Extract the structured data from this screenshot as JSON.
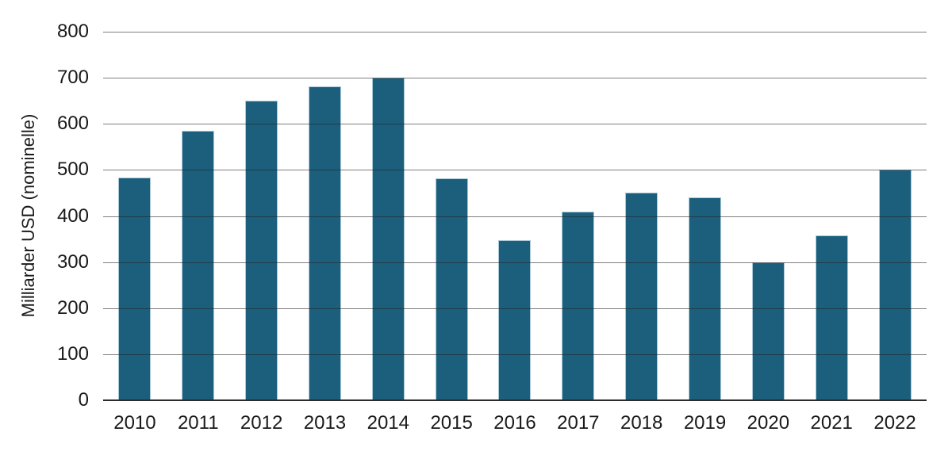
{
  "chart_data": {
    "type": "bar",
    "title": "",
    "xlabel": "",
    "ylabel": "Milliarder USD (nominelle)",
    "categories": [
      "2010",
      "2011",
      "2012",
      "2013",
      "2014",
      "2015",
      "2016",
      "2017",
      "2018",
      "2019",
      "2020",
      "2021",
      "2022"
    ],
    "values": [
      483,
      585,
      651,
      682,
      700,
      481,
      348,
      410,
      450,
      441,
      300,
      358,
      500
    ],
    "ylim": [
      0,
      800
    ],
    "yticks": [
      0,
      100,
      200,
      300,
      400,
      500,
      600,
      700,
      800
    ],
    "grid": "horizontal-gridlines-on",
    "legend": "none",
    "bar_color": "#1b5f7d",
    "bar_border_color": "#a9c9d8",
    "gridline_color": "#232323",
    "axis_line_color": "#2b2b2b",
    "text_color": "#1a1a1a",
    "background_color": "#ffffff"
  }
}
